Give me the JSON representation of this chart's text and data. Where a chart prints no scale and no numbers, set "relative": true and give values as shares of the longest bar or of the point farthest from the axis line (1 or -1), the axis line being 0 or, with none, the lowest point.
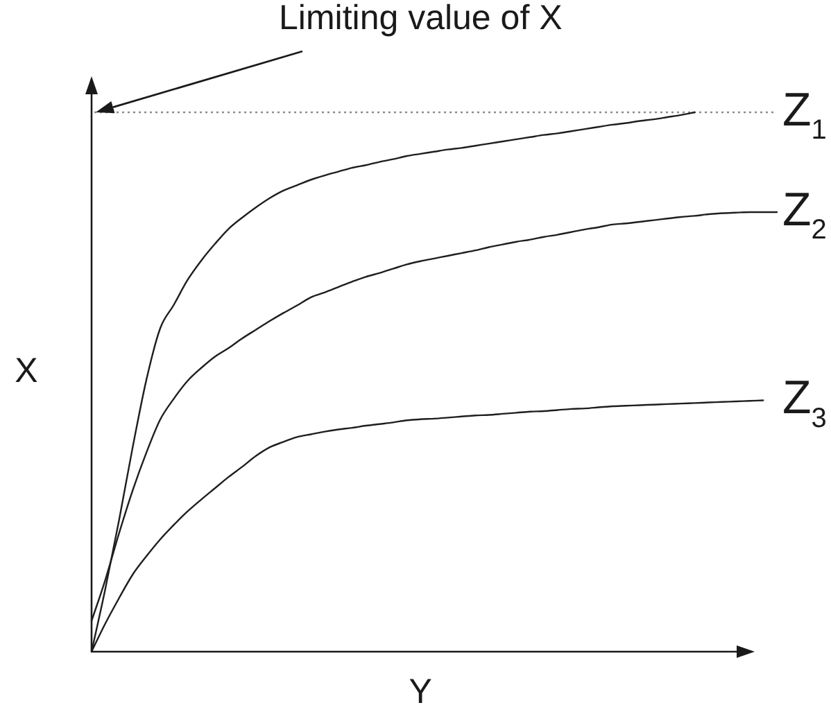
{
  "chart_data": {
    "type": "line",
    "relative": true,
    "xlabel": "Y",
    "ylabel": "X",
    "tick_labels": false,
    "marker": "none",
    "line_style": "solid",
    "categories": [
      null,
      null,
      null,
      null,
      null,
      null,
      null,
      null,
      null,
      null,
      null,
      null,
      null,
      null,
      null,
      null,
      null,
      null,
      null,
      null,
      null,
      null,
      null,
      null,
      null,
      null,
      null,
      null,
      null,
      null,
      null,
      null,
      null,
      null,
      null,
      null,
      null,
      null,
      null,
      null,
      null,
      null,
      null,
      null,
      null,
      null,
      null,
      null,
      null,
      null,
      null
    ],
    "series": [
      {
        "name": "Z$_{1}$",
        "color": "#1e1e1e",
        "values": [
          0,
          0.116,
          0.243,
          0.379,
          0.504,
          0.599,
          0.643,
          0.689,
          0.725,
          0.756,
          0.784,
          0.805,
          0.824,
          0.841,
          0.855,
          0.865,
          0.875,
          0.883,
          0.89,
          0.897,
          0.902,
          0.908,
          0.913,
          0.919,
          0.923,
          0.927,
          0.931,
          0.934,
          0.938,
          0.942,
          0.946,
          0.95,
          0.954,
          0.958,
          0.961,
          0.965,
          0.969,
          0.973,
          0.977,
          0.98,
          0.984,
          0.987,
          0.991,
          0.995,
          1,
          null,
          null,
          null,
          null,
          null,
          null
        ]
      },
      {
        "name": "Z$_{2}$",
        "color": "#1e1e1e",
        "values": [
          0.057,
          0.133,
          0.219,
          0.299,
          0.369,
          0.43,
          0.469,
          0.502,
          0.526,
          0.547,
          0.563,
          0.581,
          0.597,
          0.613,
          0.628,
          0.642,
          0.657,
          0.666,
          0.676,
          0.686,
          0.695,
          0.702,
          0.71,
          0.718,
          0.724,
          0.729,
          0.734,
          0.739,
          0.744,
          0.75,
          0.755,
          0.76,
          0.764,
          0.769,
          0.773,
          0.778,
          0.783,
          0.787,
          0.792,
          0.794,
          0.797,
          0.8,
          0.803,
          0.806,
          0.808,
          0.811,
          0.813,
          0.814,
          0.815,
          0.815,
          0.815
        ]
      },
      {
        "name": "Z$_{3}$",
        "color": "#1e1e1e",
        "values": [
          0,
          0.052,
          0.099,
          0.143,
          0.177,
          0.208,
          0.235,
          0.26,
          0.282,
          0.303,
          0.324,
          0.343,
          0.363,
          0.379,
          0.389,
          0.398,
          0.403,
          0.408,
          0.412,
          0.415,
          0.419,
          0.422,
          0.425,
          0.429,
          0.431,
          0.432,
          0.434,
          0.436,
          0.438,
          0.439,
          0.441,
          0.443,
          0.445,
          0.446,
          0.448,
          0.45,
          0.451,
          0.453,
          0.455,
          0.456,
          0.457,
          0.458,
          0.459,
          0.46,
          0.461,
          0.462,
          0.463,
          0.464,
          0.465,
          0.466,
          null
        ]
      }
    ],
    "ref_lines": [
      {
        "axis": "y",
        "value": 1,
        "label": "Limiting value of X",
        "color": "#8c8c8c",
        "line_style": "dotted"
      }
    ]
  }
}
